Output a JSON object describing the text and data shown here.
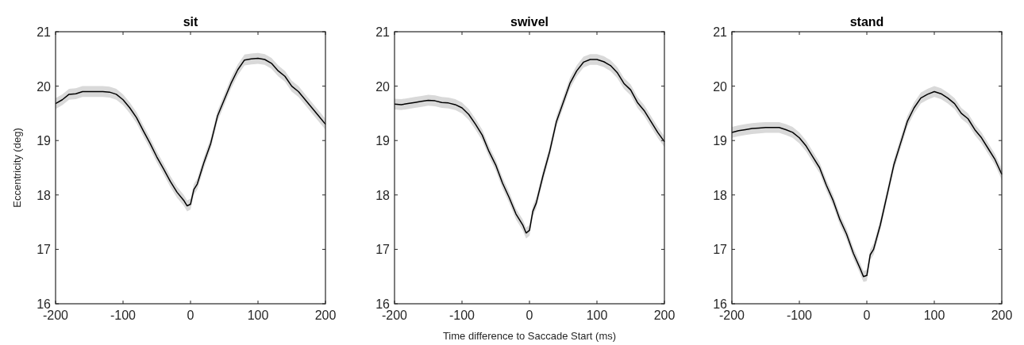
{
  "chart_data": [
    {
      "type": "line",
      "title": "sit",
      "ylabel": "Eccentricity (deg)",
      "xlim": [
        -200,
        200
      ],
      "xticks": [
        -200,
        -100,
        0,
        100,
        200
      ],
      "ylim": [
        16,
        21
      ],
      "yticks": [
        16,
        17,
        18,
        19,
        20,
        21
      ],
      "x": [
        -200,
        -190,
        -180,
        -170,
        -160,
        -150,
        -140,
        -130,
        -120,
        -110,
        -100,
        -90,
        -80,
        -70,
        -60,
        -50,
        -40,
        -30,
        -20,
        -10,
        -5,
        0,
        5,
        10,
        20,
        30,
        40,
        50,
        60,
        70,
        80,
        90,
        100,
        110,
        120,
        130,
        140,
        150,
        160,
        170,
        180,
        190,
        200
      ],
      "series": [
        {
          "color": "#000000",
          "values": [
            19.68,
            19.75,
            19.85,
            19.86,
            19.9,
            19.9,
            19.9,
            19.9,
            19.89,
            19.85,
            19.75,
            19.6,
            19.42,
            19.18,
            18.95,
            18.7,
            18.48,
            18.25,
            18.05,
            17.9,
            17.8,
            17.83,
            18.1,
            18.2,
            18.6,
            18.95,
            19.45,
            19.75,
            20.05,
            20.3,
            20.48,
            20.5,
            20.51,
            20.49,
            20.42,
            20.28,
            20.18,
            20.0,
            19.9,
            19.75,
            19.6,
            19.45,
            19.3
          ],
          "lower": [
            19.58,
            19.65,
            19.75,
            19.76,
            19.8,
            19.8,
            19.8,
            19.8,
            19.79,
            19.75,
            19.65,
            19.5,
            19.32,
            19.08,
            18.85,
            18.6,
            18.38,
            18.15,
            17.95,
            17.8,
            17.7,
            17.73,
            18.0,
            18.1,
            18.5,
            18.85,
            19.35,
            19.65,
            19.95,
            20.2,
            20.38,
            20.4,
            20.41,
            20.39,
            20.32,
            20.18,
            20.08,
            19.9,
            19.8,
            19.65,
            19.5,
            19.35,
            19.2
          ],
          "upper": [
            19.78,
            19.85,
            19.95,
            19.96,
            20.0,
            20.0,
            20.0,
            20.0,
            19.99,
            19.95,
            19.85,
            19.7,
            19.52,
            19.28,
            19.05,
            18.8,
            18.58,
            18.35,
            18.15,
            18.0,
            17.9,
            17.93,
            18.2,
            18.3,
            18.7,
            19.05,
            19.55,
            19.85,
            20.15,
            20.4,
            20.58,
            20.6,
            20.61,
            20.59,
            20.52,
            20.38,
            20.28,
            20.1,
            20.0,
            19.85,
            19.7,
            19.55,
            19.4
          ]
        }
      ]
    },
    {
      "type": "line",
      "title": "swivel",
      "xlabel": "Time difference to Saccade Start (ms)",
      "xlim": [
        -200,
        200
      ],
      "xticks": [
        -200,
        -100,
        0,
        100,
        200
      ],
      "ylim": [
        16,
        21
      ],
      "yticks": [
        16,
        17,
        18,
        19,
        20,
        21
      ],
      "x": [
        -200,
        -190,
        -180,
        -170,
        -160,
        -150,
        -140,
        -130,
        -120,
        -110,
        -100,
        -90,
        -80,
        -70,
        -60,
        -50,
        -40,
        -30,
        -20,
        -10,
        -5,
        0,
        5,
        10,
        20,
        30,
        40,
        50,
        60,
        70,
        80,
        90,
        100,
        110,
        120,
        130,
        140,
        150,
        160,
        170,
        180,
        190,
        200
      ],
      "series": [
        {
          "color": "#000000",
          "values": [
            19.67,
            19.66,
            19.68,
            19.7,
            19.72,
            19.74,
            19.73,
            19.7,
            19.69,
            19.66,
            19.6,
            19.48,
            19.3,
            19.1,
            18.8,
            18.55,
            18.22,
            17.95,
            17.65,
            17.45,
            17.3,
            17.35,
            17.7,
            17.85,
            18.35,
            18.8,
            19.35,
            19.7,
            20.05,
            20.28,
            20.44,
            20.49,
            20.49,
            20.45,
            20.38,
            20.25,
            20.05,
            19.93,
            19.7,
            19.55,
            19.35,
            19.15,
            18.98
          ],
          "lower": [
            19.57,
            19.56,
            19.58,
            19.6,
            19.62,
            19.64,
            19.63,
            19.6,
            19.59,
            19.56,
            19.5,
            19.38,
            19.2,
            19.0,
            18.7,
            18.45,
            18.12,
            17.85,
            17.55,
            17.35,
            17.2,
            17.25,
            17.6,
            17.75,
            18.25,
            18.7,
            19.25,
            19.6,
            19.95,
            20.18,
            20.34,
            20.39,
            20.39,
            20.35,
            20.28,
            20.15,
            19.95,
            19.83,
            19.6,
            19.45,
            19.25,
            19.05,
            18.88
          ],
          "upper": [
            19.77,
            19.76,
            19.78,
            19.8,
            19.82,
            19.84,
            19.83,
            19.8,
            19.79,
            19.76,
            19.7,
            19.58,
            19.4,
            19.2,
            18.9,
            18.65,
            18.32,
            18.05,
            17.75,
            17.55,
            17.4,
            17.45,
            17.8,
            17.95,
            18.45,
            18.9,
            19.45,
            19.8,
            20.15,
            20.38,
            20.54,
            20.59,
            20.59,
            20.55,
            20.48,
            20.35,
            20.15,
            20.03,
            19.8,
            19.65,
            19.45,
            19.25,
            19.08
          ]
        }
      ]
    },
    {
      "type": "line",
      "title": "stand",
      "xlim": [
        -200,
        200
      ],
      "xticks": [
        -200,
        -100,
        0,
        100,
        200
      ],
      "ylim": [
        16,
        21
      ],
      "yticks": [
        16,
        17,
        18,
        19,
        20,
        21
      ],
      "x": [
        -200,
        -190,
        -180,
        -170,
        -160,
        -150,
        -140,
        -130,
        -120,
        -110,
        -100,
        -90,
        -80,
        -70,
        -60,
        -50,
        -40,
        -30,
        -20,
        -10,
        -5,
        0,
        5,
        10,
        20,
        30,
        40,
        50,
        60,
        70,
        80,
        90,
        100,
        110,
        120,
        130,
        140,
        150,
        160,
        170,
        180,
        190,
        200
      ],
      "series": [
        {
          "color": "#000000",
          "values": [
            19.15,
            19.18,
            19.2,
            19.22,
            19.23,
            19.24,
            19.24,
            19.24,
            19.2,
            19.15,
            19.05,
            18.9,
            18.7,
            18.5,
            18.18,
            17.9,
            17.55,
            17.28,
            16.93,
            16.65,
            16.5,
            16.52,
            16.9,
            17.0,
            17.45,
            18.0,
            18.55,
            18.95,
            19.35,
            19.6,
            19.78,
            19.85,
            19.9,
            19.86,
            19.78,
            19.68,
            19.5,
            19.4,
            19.2,
            19.05,
            18.85,
            18.65,
            18.38
          ],
          "lower": [
            19.05,
            19.08,
            19.1,
            19.12,
            19.13,
            19.14,
            19.14,
            19.14,
            19.1,
            19.05,
            18.95,
            18.8,
            18.6,
            18.4,
            18.08,
            17.8,
            17.45,
            17.18,
            16.83,
            16.55,
            16.4,
            16.42,
            16.8,
            16.9,
            17.35,
            17.9,
            18.45,
            18.85,
            19.25,
            19.5,
            19.68,
            19.75,
            19.8,
            19.76,
            19.68,
            19.58,
            19.4,
            19.3,
            19.1,
            18.95,
            18.75,
            18.55,
            18.28
          ],
          "upper": [
            19.25,
            19.28,
            19.3,
            19.32,
            19.33,
            19.34,
            19.34,
            19.34,
            19.3,
            19.25,
            19.15,
            19.0,
            18.8,
            18.6,
            18.28,
            18.0,
            17.65,
            17.38,
            17.03,
            16.75,
            16.6,
            16.62,
            17.0,
            17.1,
            17.55,
            18.1,
            18.65,
            19.05,
            19.45,
            19.7,
            19.88,
            19.95,
            20.0,
            19.96,
            19.88,
            19.78,
            19.6,
            19.5,
            19.3,
            19.15,
            18.95,
            18.75,
            18.48
          ]
        }
      ]
    }
  ]
}
